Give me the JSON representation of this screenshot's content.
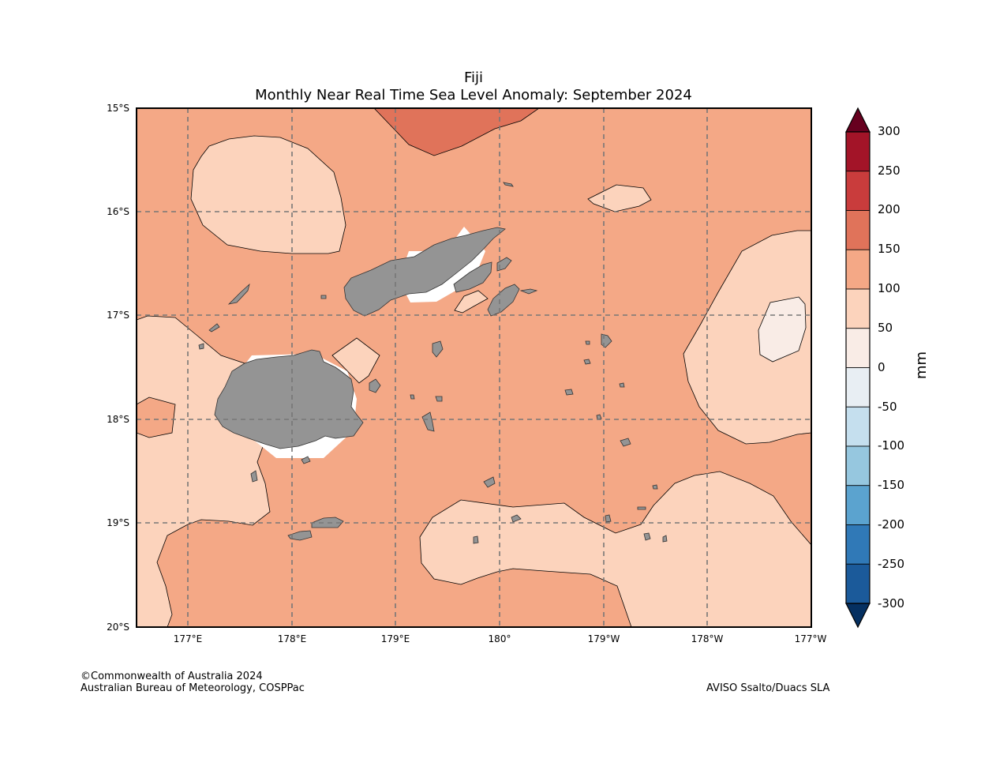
{
  "title": {
    "line1": "Fiji",
    "line2": "Monthly Near Real Time Sea Level Anomaly: September 2024"
  },
  "map": {
    "region": "Fiji",
    "lat_labels": [
      "15°S",
      "16°S",
      "17°S",
      "18°S",
      "19°S",
      "20°S"
    ],
    "lon_labels": [
      "177°E",
      "178°E",
      "179°E",
      "180°",
      "179°W",
      "178°W",
      "177°W"
    ],
    "extent": {
      "lon_min": 176.5,
      "lon_max": 183.0,
      "lat_min": -20.0,
      "lat_max": -15.0
    },
    "land_color": "#949494",
    "background_class_color": "#f4a886"
  },
  "colorbar": {
    "unit": "mm",
    "labels": [
      "300",
      "250",
      "200",
      "150",
      "100",
      "50",
      "0",
      "-50",
      "-100",
      "-150",
      "-200",
      "-250",
      "-300"
    ],
    "colors": [
      "#a31428",
      "#c93c3c",
      "#e0735a",
      "#f4a886",
      "#fcd3bc",
      "#f9ece6",
      "#e8eef3",
      "#c5dfee",
      "#96c7df",
      "#5ba3cf",
      "#3079b7",
      "#1b5a9a"
    ],
    "over_color": "#67001f",
    "under_color": "#053061"
  },
  "credits": {
    "copyright": "©Commonwealth of Australia 2024",
    "agency": "Australian Bureau of Meteorology, COSPPac",
    "source": "AVISO Ssalto/Duacs SLA"
  }
}
